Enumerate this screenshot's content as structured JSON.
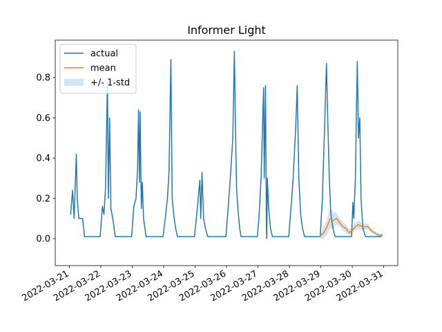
{
  "chart_data": {
    "type": "line",
    "title": "Informer Light",
    "xlim": [
      -0.45,
      10.45
    ],
    "xticks": [
      {
        "value": 0,
        "label": "2022-03-21"
      },
      {
        "value": 1,
        "label": "2022-03-22"
      },
      {
        "value": 2,
        "label": "2022-03-23"
      },
      {
        "value": 3,
        "label": "2022-03-24"
      },
      {
        "value": 4,
        "label": "2022-03-25"
      },
      {
        "value": 5,
        "label": "2022-03-26"
      },
      {
        "value": 6,
        "label": "2022-03-27"
      },
      {
        "value": 7,
        "label": "2022-03-28"
      },
      {
        "value": 8,
        "label": "2022-03-29"
      },
      {
        "value": 9,
        "label": "2022-03-30"
      },
      {
        "value": 10,
        "label": "2022-03-31"
      }
    ],
    "ylim": [
      -0.134,
      0.986
    ],
    "yticks": [
      {
        "value": 0,
        "label": "0.0"
      },
      0.2,
      0.4,
      0.6,
      0.8
    ],
    "legend": "upper left",
    "series": [
      {
        "name": "actual",
        "color": "#1f77b4",
        "x": [
          0.04,
          0.1,
          0.15,
          0.22,
          0.25,
          0.3,
          0.42,
          0.48,
          0.98,
          1.05,
          1.1,
          1.15,
          1.21,
          1.24,
          1.28,
          1.32,
          1.38,
          1.46,
          1.98,
          2.05,
          2.12,
          2.17,
          2.2,
          2.23,
          2.25,
          2.29,
          2.32,
          2.36,
          2.44,
          2.98,
          3.05,
          3.12,
          3.17,
          3.23,
          3.27,
          3.32,
          3.38,
          3.44,
          3.98,
          4.04,
          4.1,
          4.15,
          4.18,
          4.22,
          4.27,
          4.33,
          4.4,
          4.98,
          5.05,
          5.12,
          5.2,
          5.25,
          5.28,
          5.32,
          5.36,
          5.42,
          5.46,
          5.98,
          6.03,
          6.1,
          6.18,
          6.2,
          6.24,
          6.27,
          6.28,
          6.3,
          6.34,
          6.4,
          6.46,
          6.98,
          7.05,
          7.12,
          7.2,
          7.25,
          7.3,
          7.36,
          7.42,
          7.48,
          7.98,
          8.05,
          8.12,
          8.18,
          8.22,
          8.27,
          8.32,
          8.4,
          8.46,
          8.98,
          9.02,
          9.05,
          9.1,
          9.16,
          9.2,
          9.24,
          9.28,
          9.34,
          9.42,
          9.9,
          9.96
        ],
        "values": [
          0.12,
          0.24,
          0.1,
          0.42,
          0.2,
          0.1,
          0.1,
          0.01,
          0.01,
          0.16,
          0.12,
          0.25,
          0.78,
          0.2,
          0.6,
          0.15,
          0.1,
          0.01,
          0.01,
          0.16,
          0.2,
          0.35,
          0.64,
          0.28,
          0.63,
          0.15,
          0.28,
          0.1,
          0.01,
          0.01,
          0.1,
          0.2,
          0.33,
          0.89,
          0.2,
          0.12,
          0.05,
          0.01,
          0.01,
          0.1,
          0.2,
          0.29,
          0.1,
          0.33,
          0.1,
          0.05,
          0.01,
          0.01,
          0.15,
          0.3,
          0.5,
          0.93,
          0.6,
          0.25,
          0.15,
          0.05,
          0.01,
          0.01,
          0.1,
          0.3,
          0.75,
          0.3,
          0.76,
          0.05,
          0.0,
          0.3,
          0.15,
          0.05,
          0.01,
          0.01,
          0.15,
          0.3,
          0.55,
          0.76,
          0.3,
          0.12,
          0.05,
          0.01,
          0.01,
          0.2,
          0.55,
          0.87,
          0.6,
          0.3,
          0.12,
          0.04,
          0.01,
          0.01,
          0.18,
          0.1,
          0.3,
          0.88,
          0.5,
          0.6,
          0.2,
          0.05,
          0.01,
          0.01,
          0.02
        ]
      },
      {
        "name": "mean",
        "color": "#ff7f0e",
        "x": [
          7.96,
          8.1,
          8.2,
          8.3,
          8.4,
          8.5,
          8.6,
          8.7,
          8.8,
          8.9,
          9.0,
          9.1,
          9.2,
          9.3,
          9.4,
          9.5,
          9.6,
          9.7,
          9.8,
          9.9,
          9.96
        ],
        "values": [
          0.01,
          0.03,
          0.06,
          0.1,
          0.09,
          0.1,
          0.08,
          0.06,
          0.05,
          0.03,
          0.04,
          0.06,
          0.07,
          0.06,
          0.06,
          0.06,
          0.04,
          0.03,
          0.02,
          0.015,
          0.02
        ]
      }
    ],
    "band": {
      "name": "+/- 1-std",
      "color": "#1f77b4",
      "alpha": 0.2,
      "values": [
        0.01,
        0.03,
        0.04,
        0.05,
        0.04,
        0.03,
        0.02,
        0.02,
        0.02,
        0.015,
        0.015,
        0.02,
        0.02,
        0.02,
        0.015,
        0.015,
        0.01,
        0.01,
        0.01,
        0.01,
        0.01
      ]
    }
  }
}
